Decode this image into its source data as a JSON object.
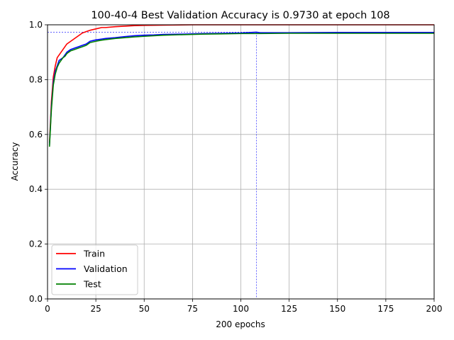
{
  "chart_data": {
    "type": "line",
    "title": "100-40-4 Best Validation Accuracy is 0.9730 at epoch 108",
    "xlabel": "200 epochs",
    "ylabel": "Accuracy",
    "xlim": [
      0,
      200
    ],
    "ylim": [
      0,
      1.0
    ],
    "xticks": [
      0,
      25,
      50,
      75,
      100,
      125,
      150,
      175,
      200
    ],
    "yticks": [
      0.0,
      0.2,
      0.4,
      0.6,
      0.8,
      1.0
    ],
    "xtick_labels": [
      "0",
      "25",
      "50",
      "75",
      "100",
      "125",
      "150",
      "175",
      "200"
    ],
    "ytick_labels": [
      "0.0",
      "0.2",
      "0.4",
      "0.6",
      "0.8",
      "1.0"
    ],
    "grid": true,
    "legend_position": "lower-left",
    "best": {
      "epoch": 108,
      "accuracy": 0.973
    },
    "series": [
      {
        "name": "Train",
        "color": "#ff0000",
        "points": [
          [
            1,
            0.57
          ],
          [
            2,
            0.72
          ],
          [
            3,
            0.81
          ],
          [
            4,
            0.85
          ],
          [
            5,
            0.88
          ],
          [
            6,
            0.89
          ],
          [
            7,
            0.9
          ],
          [
            8,
            0.91
          ],
          [
            9,
            0.92
          ],
          [
            10,
            0.93
          ],
          [
            12,
            0.94
          ],
          [
            14,
            0.95
          ],
          [
            16,
            0.96
          ],
          [
            18,
            0.97
          ],
          [
            20,
            0.975
          ],
          [
            22,
            0.98
          ],
          [
            25,
            0.985
          ],
          [
            28,
            0.99
          ],
          [
            30,
            0.99
          ],
          [
            35,
            0.993
          ],
          [
            40,
            0.995
          ],
          [
            45,
            0.997
          ],
          [
            50,
            0.998
          ],
          [
            60,
            0.999
          ],
          [
            75,
            1.0
          ],
          [
            100,
            1.0
          ],
          [
            125,
            1.0
          ],
          [
            150,
            1.0
          ],
          [
            175,
            1.0
          ],
          [
            200,
            1.0
          ]
        ]
      },
      {
        "name": "Validation",
        "color": "#0000ff",
        "points": [
          [
            1,
            0.56
          ],
          [
            2,
            0.7
          ],
          [
            3,
            0.79
          ],
          [
            4,
            0.83
          ],
          [
            5,
            0.85
          ],
          [
            6,
            0.87
          ],
          [
            7,
            0.875
          ],
          [
            8,
            0.88
          ],
          [
            9,
            0.89
          ],
          [
            10,
            0.9
          ],
          [
            12,
            0.91
          ],
          [
            14,
            0.915
          ],
          [
            16,
            0.92
          ],
          [
            18,
            0.925
          ],
          [
            20,
            0.93
          ],
          [
            22,
            0.94
          ],
          [
            25,
            0.945
          ],
          [
            28,
            0.948
          ],
          [
            30,
            0.95
          ],
          [
            35,
            0.953
          ],
          [
            40,
            0.957
          ],
          [
            45,
            0.96
          ],
          [
            50,
            0.962
          ],
          [
            55,
            0.963
          ],
          [
            60,
            0.965
          ],
          [
            70,
            0.966
          ],
          [
            80,
            0.968
          ],
          [
            90,
            0.969
          ],
          [
            100,
            0.97
          ],
          [
            108,
            0.973
          ],
          [
            110,
            0.971
          ],
          [
            125,
            0.971
          ],
          [
            150,
            0.972
          ],
          [
            175,
            0.972
          ],
          [
            200,
            0.972
          ]
        ]
      },
      {
        "name": "Test",
        "color": "#008000",
        "points": [
          [
            1,
            0.555
          ],
          [
            2,
            0.69
          ],
          [
            3,
            0.78
          ],
          [
            4,
            0.82
          ],
          [
            5,
            0.845
          ],
          [
            6,
            0.86
          ],
          [
            7,
            0.87
          ],
          [
            8,
            0.88
          ],
          [
            9,
            0.885
          ],
          [
            10,
            0.895
          ],
          [
            12,
            0.905
          ],
          [
            14,
            0.91
          ],
          [
            16,
            0.915
          ],
          [
            18,
            0.92
          ],
          [
            20,
            0.925
          ],
          [
            22,
            0.935
          ],
          [
            25,
            0.94
          ],
          [
            28,
            0.944
          ],
          [
            30,
            0.946
          ],
          [
            35,
            0.95
          ],
          [
            40,
            0.953
          ],
          [
            45,
            0.956
          ],
          [
            50,
            0.958
          ],
          [
            55,
            0.96
          ],
          [
            60,
            0.962
          ],
          [
            70,
            0.964
          ],
          [
            80,
            0.966
          ],
          [
            90,
            0.967
          ],
          [
            100,
            0.968
          ],
          [
            110,
            0.968
          ],
          [
            125,
            0.969
          ],
          [
            150,
            0.969
          ],
          [
            175,
            0.969
          ],
          [
            200,
            0.969
          ]
        ]
      }
    ]
  }
}
